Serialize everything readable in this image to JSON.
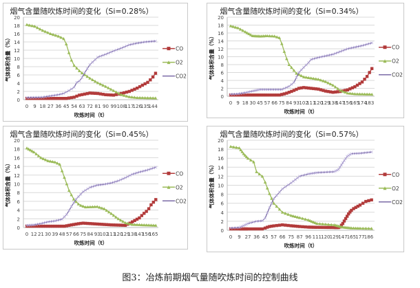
{
  "caption": "图3：冶炼前期烟气量随吹炼时间的控制曲线",
  "colors": {
    "CO": "#b23b3b",
    "O2": "#9bbb59",
    "CO2": "#7a6aa6"
  },
  "chart_data": [
    {
      "type": "line",
      "title": "烟气含量随吹炼时间的变化（Si=0.28%）",
      "xlabel": "吹炼时间（t）",
      "ylabel": "气体体积含量（%）",
      "ylim": [
        0,
        20
      ],
      "yticks": [
        "0",
        "2",
        "4",
        "6",
        "8",
        "10",
        "12",
        "14",
        "16",
        "18",
        "20"
      ],
      "xticks": [
        0,
        9,
        18,
        27,
        36,
        45,
        54,
        63,
        72,
        81,
        90,
        99,
        108,
        117,
        126,
        135,
        144
      ],
      "xmax": 147,
      "grid": true,
      "legend": "right",
      "series": [
        {
          "name": "CO",
          "points": [
            [
              0,
              0.3
            ],
            [
              45,
              0.3
            ],
            [
              54,
              0.6
            ],
            [
              60,
              1.1
            ],
            [
              72,
              1.6
            ],
            [
              81,
              1.5
            ],
            [
              90,
              1.2
            ],
            [
              99,
              1.1
            ],
            [
              108,
              1.5
            ],
            [
              117,
              2
            ],
            [
              126,
              2.8
            ],
            [
              132,
              3.5
            ],
            [
              138,
              4.2
            ],
            [
              141,
              4.8
            ],
            [
              144,
              5.5
            ],
            [
              147,
              6.4
            ]
          ]
        },
        {
          "name": "O2",
          "points": [
            [
              0,
              18.2
            ],
            [
              9,
              17.8
            ],
            [
              18,
              16.8
            ],
            [
              27,
              16
            ],
            [
              36,
              15.4
            ],
            [
              42,
              14.8
            ],
            [
              45,
              13.5
            ],
            [
              50,
              10
            ],
            [
              54,
              8.3
            ],
            [
              60,
              7
            ],
            [
              63,
              6.5
            ],
            [
              72,
              5.2
            ],
            [
              81,
              4.1
            ],
            [
              90,
              3.2
            ],
            [
              99,
              2.2
            ],
            [
              108,
              1.2
            ],
            [
              117,
              0.7
            ],
            [
              126,
              0.5
            ],
            [
              147,
              0.4
            ]
          ]
        },
        {
          "name": "CO2",
          "points": [
            [
              0,
              0.5
            ],
            [
              18,
              0.6
            ],
            [
              27,
              0.9
            ],
            [
              36,
              1.2
            ],
            [
              42,
              1.5
            ],
            [
              48,
              2.2
            ],
            [
              54,
              3
            ],
            [
              57,
              4.2
            ],
            [
              61,
              4.6
            ],
            [
              66,
              6.5
            ],
            [
              72,
              8.5
            ],
            [
              81,
              10.3
            ],
            [
              90,
              11
            ],
            [
              99,
              11.8
            ],
            [
              108,
              12.5
            ],
            [
              117,
              13.3
            ],
            [
              126,
              13.7
            ],
            [
              135,
              14
            ],
            [
              147,
              14.2
            ]
          ]
        }
      ]
    },
    {
      "type": "line",
      "title": "烟气含量随吹炼时间的变化（Si=0.34%）",
      "xlabel": "吹炼时间（t）",
      "ylabel": "气体体积含量（%）",
      "ylim": [
        0,
        20
      ],
      "yticks": [
        "0",
        "2",
        "4",
        "6",
        "8",
        "10",
        "12",
        "14",
        "16",
        "18",
        "20"
      ],
      "xticks": [
        0,
        9,
        18,
        30,
        45,
        57,
        66,
        75,
        84,
        93,
        102,
        111,
        120,
        129,
        138,
        147,
        156,
        165,
        174,
        183
      ],
      "xmax": 186,
      "grid": true,
      "legend": "right",
      "series": [
        {
          "name": "CO",
          "points": [
            [
              0,
              0.3
            ],
            [
              72,
              0.3
            ],
            [
              80,
              0.7
            ],
            [
              88,
              1.3
            ],
            [
              96,
              2.0
            ],
            [
              102,
              2.2
            ],
            [
              111,
              2.0
            ],
            [
              120,
              1.8
            ],
            [
              129,
              1.3
            ],
            [
              138,
              1.0
            ],
            [
              147,
              1.2
            ],
            [
              156,
              1.6
            ],
            [
              165,
              2.4
            ],
            [
              174,
              3.6
            ],
            [
              180,
              5.0
            ],
            [
              186,
              7.0
            ]
          ]
        },
        {
          "name": "O2",
          "points": [
            [
              0,
              17.8
            ],
            [
              9,
              17.3
            ],
            [
              18,
              16.3
            ],
            [
              30,
              15.3
            ],
            [
              45,
              15.2
            ],
            [
              57,
              15.3
            ],
            [
              66,
              15.2
            ],
            [
              72,
              14.8
            ],
            [
              75,
              13.3
            ],
            [
              80,
              10
            ],
            [
              84,
              8
            ],
            [
              93,
              5.8
            ],
            [
              102,
              4.9
            ],
            [
              111,
              4.6
            ],
            [
              120,
              4.3
            ],
            [
              129,
              3.7
            ],
            [
              138,
              2.8
            ],
            [
              147,
              1.5
            ],
            [
              156,
              0.8
            ],
            [
              165,
              0.6
            ],
            [
              186,
              0.5
            ]
          ]
        },
        {
          "name": "CO2",
          "points": [
            [
              0,
              0.5
            ],
            [
              9,
              0.6
            ],
            [
              18,
              0.9
            ],
            [
              30,
              1.3
            ],
            [
              45,
              1.7
            ],
            [
              57,
              1.7
            ],
            [
              75,
              1.7
            ],
            [
              84,
              2.5
            ],
            [
              90,
              3.5
            ],
            [
              96,
              6
            ],
            [
              102,
              7.3
            ],
            [
              108,
              8.5
            ],
            [
              111,
              9.3
            ],
            [
              120,
              9.8
            ],
            [
              129,
              10.2
            ],
            [
              138,
              10.6
            ],
            [
              147,
              11.3
            ],
            [
              156,
              12
            ],
            [
              165,
              12.4
            ],
            [
              174,
              12.8
            ],
            [
              186,
              13.5
            ]
          ]
        }
      ]
    },
    {
      "type": "line",
      "title": "烟气含量随吹炼时间的变化（Si=0.45%）",
      "xlabel": "吹炼时间（t）",
      "ylabel": "气体体积含量（%）",
      "ylim": [
        0,
        20
      ],
      "yticks": [
        "0",
        "2",
        "4",
        "6",
        "8",
        "10",
        "12",
        "14",
        "16",
        "18",
        "20"
      ],
      "xticks": [
        0,
        12,
        21,
        30,
        39,
        48,
        57,
        66,
        75,
        84,
        93,
        102,
        111,
        120,
        129,
        138,
        147,
        156,
        165
      ],
      "xmax": 168,
      "grid": true,
      "legend": "right",
      "series": [
        {
          "name": "CO",
          "points": [
            [
              0,
              0.3
            ],
            [
              51,
              0.3
            ],
            [
              60,
              0.6
            ],
            [
              70,
              0.9
            ],
            [
              75,
              1.0
            ],
            [
              84,
              0.9
            ],
            [
              93,
              0.8
            ],
            [
              111,
              0.6
            ],
            [
              129,
              0.5
            ],
            [
              135,
              1.0
            ],
            [
              141,
              1.6
            ],
            [
              147,
              2.2
            ],
            [
              152,
              3.1
            ],
            [
              158,
              4.0
            ],
            [
              162,
              5.2
            ],
            [
              168,
              6.4
            ]
          ]
        },
        {
          "name": "O2",
          "points": [
            [
              0,
              18.2
            ],
            [
              12,
              17.3
            ],
            [
              21,
              16
            ],
            [
              30,
              15.3
            ],
            [
              39,
              15
            ],
            [
              45,
              14.5
            ],
            [
              48,
              13
            ],
            [
              52,
              11
            ],
            [
              57,
              8.5
            ],
            [
              63,
              6.5
            ],
            [
              70,
              5.2
            ],
            [
              78,
              4.7
            ],
            [
              93,
              4.8
            ],
            [
              102,
              4.3
            ],
            [
              111,
              3.2
            ],
            [
              120,
              2
            ],
            [
              129,
              1.1
            ],
            [
              138,
              0.7
            ],
            [
              168,
              0.5
            ]
          ]
        },
        {
          "name": "CO2",
          "points": [
            [
              0,
              0.5
            ],
            [
              12,
              0.6
            ],
            [
              21,
              0.9
            ],
            [
              30,
              1.3
            ],
            [
              39,
              1.5
            ],
            [
              48,
              1.9
            ],
            [
              54,
              3
            ],
            [
              60,
              4.8
            ],
            [
              66,
              6.5
            ],
            [
              75,
              8.2
            ],
            [
              84,
              9.2
            ],
            [
              93,
              9.7
            ],
            [
              102,
              9.9
            ],
            [
              111,
              10.2
            ],
            [
              120,
              10.7
            ],
            [
              129,
              11.4
            ],
            [
              138,
              12.2
            ],
            [
              147,
              12.7
            ],
            [
              156,
              13.1
            ],
            [
              168,
              13.8
            ]
          ]
        }
      ]
    },
    {
      "type": "line",
      "title": "烟气含量随吹炼时间的变化（Si=0.57%）",
      "xlabel": "吹炼时间（t）",
      "ylabel": "气体体积含量（%）",
      "ylim": [
        0,
        20
      ],
      "yticks": [
        "0",
        "2",
        "4",
        "6",
        "8",
        "10",
        "12",
        "14",
        "16",
        "18",
        "20"
      ],
      "xticks": [
        0,
        9,
        27,
        36,
        45,
        57,
        66,
        75,
        87,
        96,
        111,
        120,
        129,
        147,
        165,
        177,
        186
      ],
      "xmax": 190,
      "grid": true,
      "legend": "right",
      "series": [
        {
          "name": "CO",
          "points": [
            [
              0,
              0.3
            ],
            [
              42,
              0.3
            ],
            [
              50,
              0.8
            ],
            [
              66,
              1.2
            ],
            [
              75,
              1.0
            ],
            [
              96,
              0.7
            ],
            [
              129,
              0.6
            ],
            [
              140,
              0.6
            ],
            [
              147,
              1.5
            ],
            [
              153,
              2.6
            ],
            [
              160,
              3.8
            ],
            [
              168,
              4.8
            ],
            [
              177,
              5.6
            ],
            [
              183,
              6.4
            ],
            [
              190,
              6.8
            ]
          ]
        },
        {
          "name": "O2",
          "points": [
            [
              0,
              18.6
            ],
            [
              9,
              18.3
            ],
            [
              18,
              17
            ],
            [
              27,
              16
            ],
            [
              33,
              15.2
            ],
            [
              36,
              13
            ],
            [
              42,
              12
            ],
            [
              50,
              8.5
            ],
            [
              57,
              6
            ],
            [
              66,
              4
            ],
            [
              75,
              3.3
            ],
            [
              87,
              2.8
            ],
            [
              96,
              2.3
            ],
            [
              111,
              1.5
            ],
            [
              129,
              1.2
            ],
            [
              147,
              0.7
            ],
            [
              165,
              0.5
            ],
            [
              190,
              0.4
            ]
          ]
        },
        {
          "name": "CO2",
          "points": [
            [
              0,
              0.5
            ],
            [
              9,
              0.6
            ],
            [
              18,
              1.0
            ],
            [
              27,
              1.5
            ],
            [
              36,
              2.0
            ],
            [
              42,
              2.1
            ],
            [
              45,
              2.7
            ],
            [
              51,
              5
            ],
            [
              57,
              7
            ],
            [
              66,
              9.2
            ],
            [
              75,
              10.5
            ],
            [
              87,
              12
            ],
            [
              96,
              12.5
            ],
            [
              111,
              12.8
            ],
            [
              129,
              13.0
            ],
            [
              138,
              13.5
            ],
            [
              147,
              15
            ],
            [
              156,
              16.4
            ],
            [
              165,
              17
            ],
            [
              177,
              17.1
            ],
            [
              190,
              17.4
            ]
          ]
        }
      ]
    }
  ]
}
